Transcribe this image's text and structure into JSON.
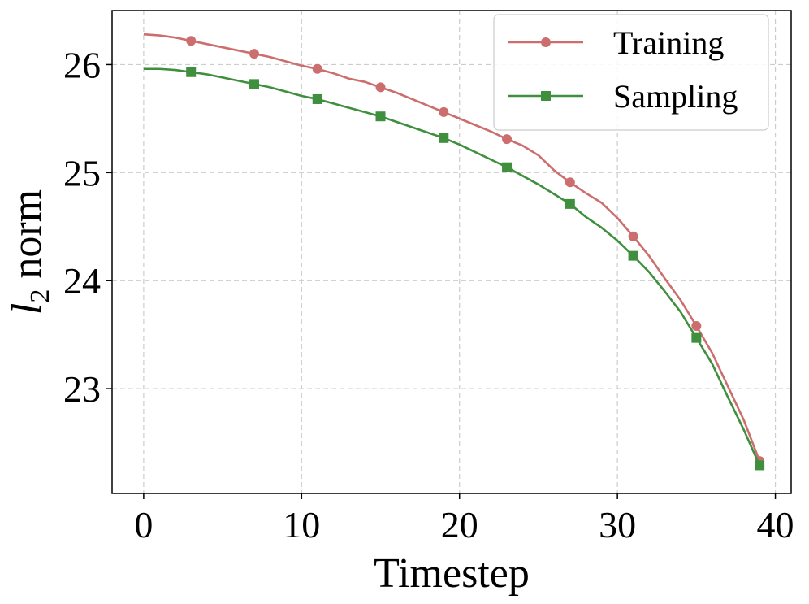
{
  "chart_data": {
    "type": "line",
    "title": "",
    "xlabel": "Timestep",
    "ylabel_main": "l",
    "ylabel_sub": "2",
    "ylabel_rest": " norm",
    "xlim": [
      -2,
      41
    ],
    "ylim": [
      22.03,
      26.5
    ],
    "xticks": [
      0,
      10,
      20,
      30,
      40
    ],
    "xtick_labels": [
      "0",
      "10",
      "20",
      "30",
      "40"
    ],
    "yticks": [
      23,
      24,
      25,
      26
    ],
    "ytick_labels": [
      "23",
      "24",
      "25",
      "26"
    ],
    "grid": true,
    "legend_position": "top-right",
    "x": [
      0,
      1,
      2,
      3,
      4,
      5,
      6,
      7,
      8,
      9,
      10,
      11,
      12,
      13,
      14,
      15,
      16,
      17,
      18,
      19,
      20,
      21,
      22,
      23,
      24,
      25,
      26,
      27,
      28,
      29,
      30,
      31,
      32,
      33,
      34,
      35,
      36,
      37,
      38,
      39
    ],
    "marker_indices": [
      3,
      7,
      11,
      15,
      19,
      23,
      27,
      31,
      35,
      39
    ],
    "series": [
      {
        "name": "Training",
        "color": "#cc6e6e",
        "marker": "circle",
        "values": [
          26.28,
          26.27,
          26.25,
          26.22,
          26.19,
          26.16,
          26.13,
          26.1,
          26.07,
          26.03,
          25.99,
          25.96,
          25.92,
          25.87,
          25.84,
          25.79,
          25.74,
          25.68,
          25.62,
          25.56,
          25.5,
          25.44,
          25.38,
          25.31,
          25.25,
          25.16,
          25.02,
          24.91,
          24.81,
          24.72,
          24.58,
          24.41,
          24.23,
          24.02,
          23.82,
          23.58,
          23.33,
          23.02,
          22.71,
          22.33
        ]
      },
      {
        "name": "Sampling",
        "color": "#3f8f3f",
        "marker": "square",
        "values": [
          25.96,
          25.96,
          25.95,
          25.93,
          25.91,
          25.88,
          25.85,
          25.82,
          25.79,
          25.75,
          25.71,
          25.68,
          25.64,
          25.6,
          25.56,
          25.52,
          25.47,
          25.42,
          25.37,
          25.32,
          25.26,
          25.19,
          25.12,
          25.05,
          24.97,
          24.89,
          24.8,
          24.71,
          24.59,
          24.49,
          24.37,
          24.23,
          24.08,
          23.9,
          23.71,
          23.47,
          23.23,
          22.92,
          22.62,
          22.29
        ]
      }
    ]
  }
}
